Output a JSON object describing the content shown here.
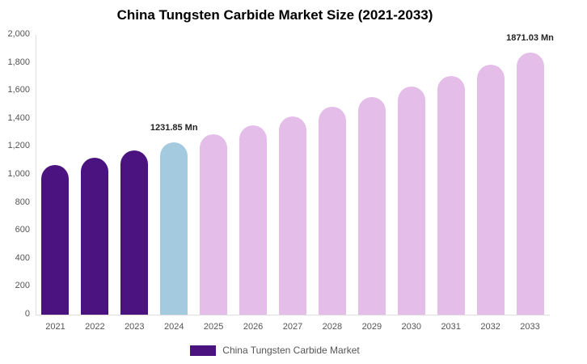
{
  "chart_data": {
    "type": "bar",
    "title": "China Tungsten Carbide Market Size (2021-2033)",
    "unit": "Mn",
    "categories": [
      "2021",
      "2022",
      "2023",
      "2024",
      "2025",
      "2026",
      "2027",
      "2028",
      "2029",
      "2030",
      "2031",
      "2032",
      "2033"
    ],
    "values": [
      1072,
      1123,
      1176,
      1231.85,
      1290,
      1352,
      1416,
      1483,
      1554,
      1628,
      1705,
      1786,
      1871.03
    ],
    "bar_colors": [
      "#4b1380",
      "#4b1380",
      "#4b1380",
      "#a4cadf",
      "#e4bde8",
      "#e4bde8",
      "#e4bde8",
      "#e4bde8",
      "#e4bde8",
      "#e4bde8",
      "#e4bde8",
      "#e4bde8",
      "#e4bde8"
    ],
    "labeled_points": [
      {
        "category": "2024",
        "label": "1231.85 Mn"
      },
      {
        "category": "2033",
        "label": "1871.03 Mn"
      }
    ],
    "ylim": [
      0,
      2000
    ],
    "ytick_labels": [
      "0",
      "200",
      "400",
      "600",
      "800",
      "1,000",
      "1,200",
      "1,400",
      "1,600",
      "1,800",
      "2,000"
    ],
    "grid": false,
    "xlabel": "",
    "ylabel": "",
    "legend": {
      "position": "bottom",
      "items": [
        {
          "label": "China Tungsten Carbide Market",
          "color": "#4b1380"
        }
      ]
    }
  },
  "colors": {
    "background": "#ffffff",
    "axis_line": "#dddddd",
    "tick_text": "#555555",
    "title_text": "#000000",
    "value_label_text": "#222222",
    "legend_text": "#555555"
  }
}
